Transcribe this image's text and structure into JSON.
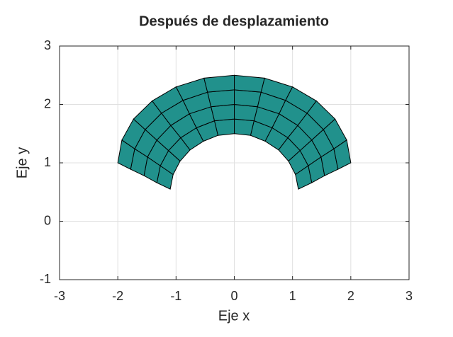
{
  "chart_data": {
    "type": "mesh",
    "title": "Después de desplazamiento",
    "xlabel": "Eje x",
    "ylabel": "Eje y",
    "xlim": [
      -3,
      3
    ],
    "ylim": [
      -1,
      3
    ],
    "xticks": [
      -3,
      -2,
      -1,
      0,
      1,
      2,
      3
    ],
    "yticks": [
      -1,
      0,
      1,
      2,
      3
    ],
    "grid": true,
    "color": "#21918c",
    "edge_color": "#000000",
    "mesh": {
      "x": [
        [
          -1.1,
          -1.05,
          -0.93,
          -0.76,
          -0.53,
          -0.28,
          0,
          0.28,
          0.53,
          0.76,
          0.93,
          1.05,
          1.1
        ],
        [
          -1.33,
          -1.27,
          -1.13,
          -0.92,
          -0.65,
          -0.34,
          0,
          0.34,
          0.65,
          0.92,
          1.13,
          1.27,
          1.33
        ],
        [
          -1.55,
          -1.49,
          -1.33,
          -1.09,
          -0.77,
          -0.4,
          0,
          0.4,
          0.77,
          1.09,
          1.33,
          1.49,
          1.55
        ],
        [
          -1.78,
          -1.71,
          -1.53,
          -1.25,
          -0.88,
          -0.46,
          0,
          0.46,
          0.88,
          1.25,
          1.53,
          1.71,
          1.78
        ],
        [
          -2,
          -1.93,
          -1.73,
          -1.41,
          -1,
          -0.52,
          0,
          0.52,
          1,
          1.41,
          1.73,
          1.93,
          2
        ]
      ],
      "y": [
        [
          0.55,
          0.8,
          1.03,
          1.22,
          1.37,
          1.47,
          1.5,
          1.47,
          1.37,
          1.22,
          1.03,
          0.8,
          0.55
        ],
        [
          0.66,
          0.95,
          1.21,
          1.43,
          1.6,
          1.72,
          1.75,
          1.72,
          1.6,
          1.43,
          1.21,
          0.95,
          0.66
        ],
        [
          0.78,
          1.1,
          1.39,
          1.64,
          1.84,
          1.96,
          2,
          1.96,
          1.84,
          1.64,
          1.39,
          1.1,
          0.78
        ],
        [
          0.89,
          1.24,
          1.57,
          1.85,
          2.07,
          2.21,
          2.25,
          2.21,
          2.07,
          1.85,
          1.57,
          1.24,
          0.89
        ],
        [
          1,
          1.39,
          1.75,
          2.06,
          2.3,
          2.45,
          2.5,
          2.45,
          2.3,
          2.06,
          1.75,
          1.39,
          1
        ]
      ]
    }
  }
}
